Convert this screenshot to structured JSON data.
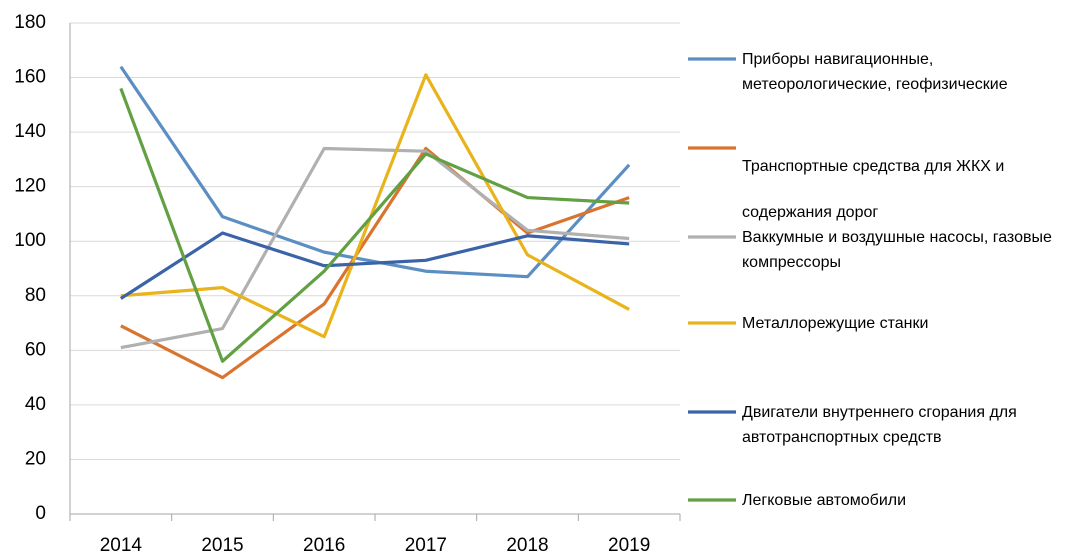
{
  "chart_data": {
    "type": "line",
    "categories": [
      "2014",
      "2015",
      "2016",
      "2017",
      "2018",
      "2019"
    ],
    "series": [
      {
        "name": "Приборы навигационные, метеорологические, геофизические",
        "color": "#5b8fc3",
        "values": [
          164,
          109,
          96,
          89,
          87,
          128
        ]
      },
      {
        "name": "Транспортные средства для ЖКХ и содержания дорог",
        "color": "#d9742f",
        "values": [
          69,
          50,
          77,
          134,
          103,
          116
        ]
      },
      {
        "name": "Ваккумные и воздушные насосы, газовые компрессоры",
        "color": "#b0b0b0",
        "values": [
          61,
          68,
          134,
          133,
          104,
          101
        ]
      },
      {
        "name": "Металлорежущие станки",
        "color": "#e9b31b",
        "values": [
          80,
          83,
          65,
          161,
          95,
          75
        ]
      },
      {
        "name": "Двигатели внутреннего сгорания для автотранспортных средств",
        "color": "#3b63a8",
        "values": [
          79,
          103,
          91,
          93,
          102,
          99
        ]
      },
      {
        "name": "Легковые автомобили",
        "color": "#62a043",
        "values": [
          156,
          56,
          89,
          132,
          116,
          114
        ]
      }
    ],
    "ylim": [
      0,
      180
    ],
    "yticks": [
      0,
      20,
      40,
      60,
      80,
      100,
      120,
      140,
      160,
      180
    ],
    "grid": true,
    "legend": "right"
  }
}
